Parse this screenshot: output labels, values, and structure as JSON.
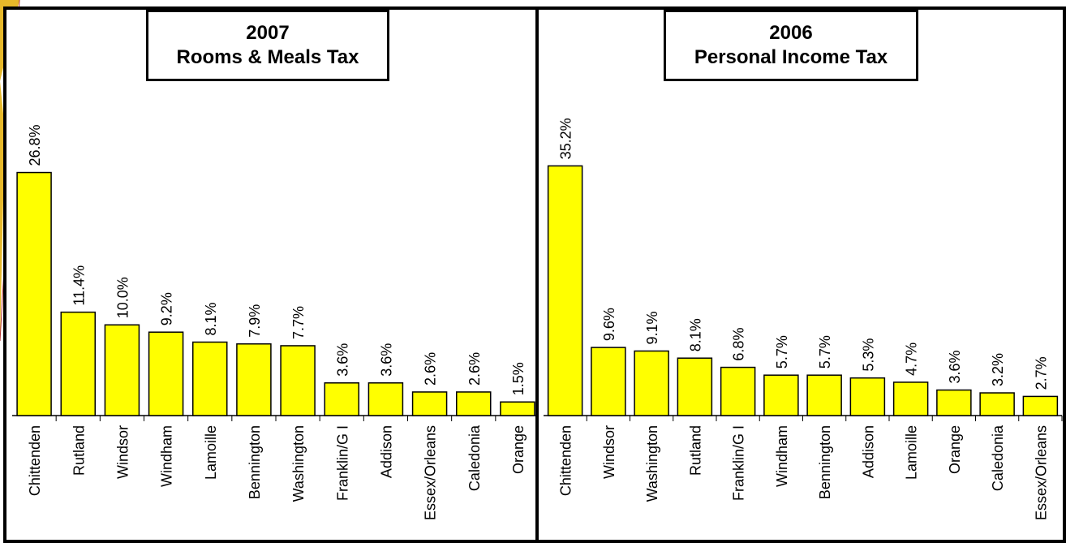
{
  "chart_data": [
    {
      "type": "bar",
      "title": "2007",
      "subtitle": "Rooms & Meals Tax",
      "categories": [
        "Chittenden",
        "Rutland",
        "Windsor",
        "Windham",
        "Lamoille",
        "Bennington",
        "Washington",
        "Franklin/G I",
        "Addison",
        "Essex/Orleans",
        "Caledonia",
        "Orange"
      ],
      "values": [
        26.8,
        11.4,
        10.0,
        9.2,
        8.1,
        7.9,
        7.7,
        3.6,
        3.6,
        2.6,
        2.6,
        1.5
      ],
      "labels": [
        "26.8%",
        "11.4%",
        "10.0%",
        "9.2%",
        "8.1%",
        "7.9%",
        "7.7%",
        "3.6%",
        "3.6%",
        "2.6%",
        "2.6%",
        "1.5%"
      ],
      "ylim": [
        0,
        28
      ],
      "xlabel": "",
      "ylabel": "",
      "grid": false,
      "bar_color": "#ffff00"
    },
    {
      "type": "bar",
      "title": "2006",
      "subtitle": "Personal Income Tax",
      "categories": [
        "Chittenden",
        "Windsor",
        "Washington",
        "Rutland",
        "Franklin/G I",
        "Windham",
        "Bennington",
        "Addison",
        "Lamoille",
        "Orange",
        "Caledonia",
        "Essex/Orleans"
      ],
      "values": [
        35.2,
        9.6,
        9.1,
        8.1,
        6.8,
        5.7,
        5.7,
        5.3,
        4.7,
        3.6,
        3.2,
        2.7
      ],
      "labels": [
        "35.2%",
        "9.6%",
        "9.1%",
        "8.1%",
        "6.8%",
        "5.7%",
        "5.7%",
        "5.3%",
        "4.7%",
        "3.6%",
        "3.2%",
        "2.7%"
      ],
      "ylim": [
        0,
        36.5
      ],
      "xlabel": "",
      "ylabel": "",
      "grid": false,
      "bar_color": "#ffff00"
    }
  ],
  "colors": {
    "bar_fill": "#ffff00",
    "bar_stroke": "#000000",
    "border": "#000000",
    "background": "#ffffff",
    "decoration_gold": "#e6b82a",
    "decoration_line": "#b03030"
  }
}
